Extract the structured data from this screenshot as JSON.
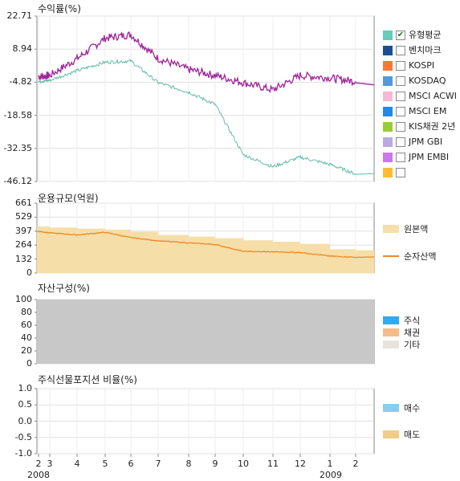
{
  "panel1": {
    "title": "수익률(%)",
    "yticks": [
      "22.71",
      "8.94",
      "-4.82",
      "-18.58",
      "-32.35",
      "-46.12"
    ],
    "legend": [
      {
        "label": "유형평균",
        "color": "#66ccbb",
        "checked": true
      },
      {
        "label": "벤치마크",
        "color": "#1a4f8f",
        "checked": false
      },
      {
        "label": "KOSPI",
        "color": "#ff7733",
        "checked": false
      },
      {
        "label": "KOSDAQ",
        "color": "#5599dd",
        "checked": false
      },
      {
        "label": "MSCI ACWI",
        "color": "#f5b8d8",
        "checked": false
      },
      {
        "label": "MSCI EM",
        "color": "#2288ee",
        "checked": false
      },
      {
        "label": "KIS채권 2년",
        "color": "#99cc33",
        "checked": false
      },
      {
        "label": "JPM GBI",
        "color": "#bbaadd",
        "checked": false
      },
      {
        "label": "JPM EMBI",
        "color": "#cc77ee",
        "checked": false
      },
      {
        "label": "",
        "color": "#ffbb33",
        "checked": false
      }
    ]
  },
  "panel2": {
    "title": "운용규모(억원)",
    "yticks": [
      "661",
      "529",
      "397",
      "264",
      "132",
      "0"
    ],
    "legend": [
      {
        "label": "원본액",
        "color": "#f5dea8"
      },
      {
        "label": "순자산액",
        "color": "#ee8822"
      }
    ]
  },
  "panel3": {
    "title": "자산구성(%)",
    "yticks": [
      "100",
      "80",
      "60",
      "40",
      "20",
      "0"
    ],
    "legend": [
      {
        "label": "주식",
        "color": "#33aaee"
      },
      {
        "label": "채권",
        "color": "#f5bb88"
      },
      {
        "label": "기타",
        "color": "#e8e4dc"
      }
    ]
  },
  "panel4": {
    "title": "주식선물포지션 비율(%)",
    "yticks": [
      "1.0",
      "0.5",
      "0.0",
      "-0.5",
      "-1.0"
    ],
    "legend": [
      {
        "label": "매수",
        "color": "#88ccf5"
      },
      {
        "label": "매도",
        "color": "#f0cc88"
      }
    ]
  },
  "xaxis": {
    "ticks": [
      "2",
      "3",
      "4",
      "5",
      "6",
      "7",
      "8",
      "9",
      "10",
      "11",
      "12",
      "1",
      "2"
    ],
    "years": [
      "2008",
      "2009"
    ]
  },
  "chart_data": [
    {
      "type": "line",
      "title": "수익률(%)",
      "ylim": [
        -46.12,
        22.71
      ],
      "x": [
        "2008-02",
        "2008-03",
        "2008-04",
        "2008-05",
        "2008-06",
        "2008-07",
        "2008-08",
        "2008-09",
        "2008-10",
        "2008-11",
        "2008-12",
        "2009-01",
        "2009-02"
      ],
      "series": [
        {
          "name": "",
          "color": "#a0249a",
          "values": [
            -2.5,
            -2.0,
            5.0,
            13.5,
            15.0,
            5.0,
            0.5,
            -2.0,
            -5.0,
            -8.0,
            -2.0,
            -3.0,
            -4.5
          ]
        },
        {
          "name": "유형평균",
          "color": "#66bbaa",
          "values": [
            -4.5,
            -4.0,
            0.0,
            3.5,
            4.0,
            -5.0,
            -9.0,
            -14.0,
            -35.0,
            -40.0,
            -36.0,
            -39.0,
            -43.0
          ]
        }
      ]
    },
    {
      "type": "area",
      "title": "운용규모(억원)",
      "ylim": [
        0,
        661
      ],
      "x": [
        "2008-02",
        "2008-03",
        "2008-04",
        "2008-05",
        "2008-06",
        "2008-07",
        "2008-08",
        "2008-09",
        "2008-10",
        "2008-11",
        "2008-12",
        "2009-01",
        "2009-02"
      ],
      "series": [
        {
          "name": "원본액",
          "color": "#f5dea8",
          "values": [
            440,
            430,
            420,
            410,
            390,
            360,
            345,
            330,
            310,
            295,
            275,
            225,
            215
          ]
        },
        {
          "name": "순자산액",
          "color": "#ee8822",
          "values": [
            395,
            380,
            360,
            385,
            335,
            305,
            285,
            270,
            205,
            200,
            195,
            160,
            150
          ]
        }
      ]
    },
    {
      "type": "area",
      "title": "자산구성(%)",
      "ylim": [
        0,
        100
      ],
      "x": [
        "2008-02",
        "2009-02"
      ],
      "series": [
        {
          "name": "기타",
          "color": "#c8c8c8",
          "values": [
            100,
            100
          ]
        }
      ]
    },
    {
      "type": "line",
      "title": "주식선물포지션 비율(%)",
      "ylim": [
        -1.0,
        1.0
      ],
      "x": [
        "2008-02",
        "2009-02"
      ],
      "series": []
    }
  ]
}
